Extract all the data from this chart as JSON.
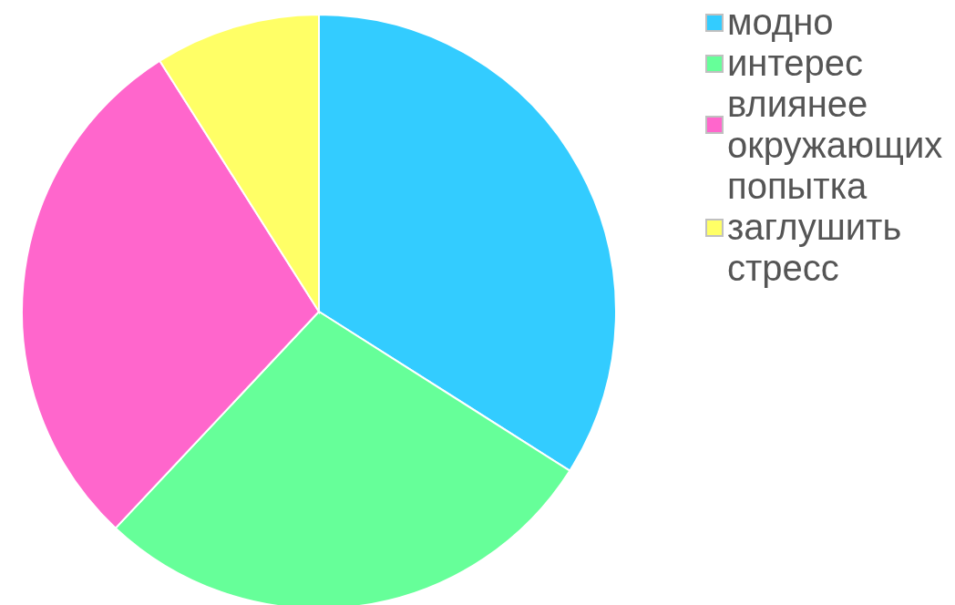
{
  "chart_data": {
    "type": "pie",
    "categories": [
      "модно",
      "интерес",
      "влиянее окружающих",
      "попытка заглушить стресс"
    ],
    "values": [
      34,
      28,
      29,
      9
    ],
    "colors": [
      "#33ccff",
      "#66ff99",
      "#ff66cc",
      "#ffff66"
    ],
    "legend": "top right"
  }
}
